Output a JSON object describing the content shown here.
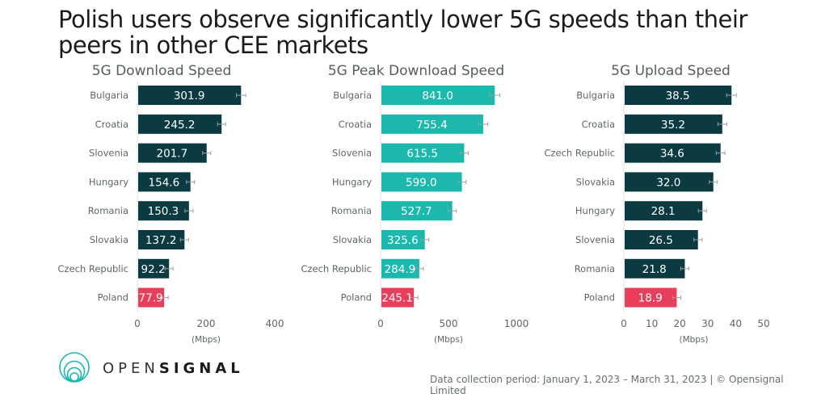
{
  "title": "Polish users observe significantly lower 5G speeds than their peers in other CEE markets",
  "brand": {
    "light": "OPEN",
    "bold": "SIGNAL",
    "logo_icon": "opensignal-rings-icon"
  },
  "footer": "Data collection period: January 1, 2023 – March 31, 2023 | © Opensignal Limited",
  "colors": {
    "download": "#0b3b40",
    "peak": "#1db8ad",
    "upload": "#0b3b40",
    "highlight": "#e83e5c",
    "axis": "#e0e0e0",
    "error_bar": "#9aa0a2"
  },
  "chart_data": [
    {
      "type": "bar",
      "orientation": "horizontal",
      "title": "5G Download Speed",
      "xlabel": "(Mbps)",
      "categories": [
        "Bulgaria",
        "Croatia",
        "Slovenia",
        "Hungary",
        "Romania",
        "Slovakia",
        "Czech Republic",
        "Poland"
      ],
      "values": [
        301.9,
        245.2,
        201.7,
        154.6,
        150.3,
        137.2,
        92.2,
        77.9
      ],
      "value_labels": [
        "301.9",
        "245.2",
        "201.7",
        "154.6",
        "150.3",
        "137.2",
        "92.2",
        "77.9"
      ],
      "highlight": "Poland",
      "xlim": [
        0,
        400
      ],
      "xticks": [
        0,
        200,
        400
      ],
      "error_bars": true,
      "grid": false
    },
    {
      "type": "bar",
      "orientation": "horizontal",
      "title": "5G Peak Download Speed",
      "xlabel": "(Mbps)",
      "categories": [
        "Bulgaria",
        "Croatia",
        "Slovenia",
        "Hungary",
        "Romania",
        "Slovakia",
        "Czech Republic",
        "Poland"
      ],
      "values": [
        841.0,
        755.4,
        615.5,
        599.0,
        527.7,
        325.6,
        284.9,
        245.1
      ],
      "value_labels": [
        "841.0",
        "755.4",
        "615.5",
        "599.0",
        "527.7",
        "325.6",
        "284.9",
        "245.1"
      ],
      "highlight": "Poland",
      "xlim": [
        0,
        1000
      ],
      "xticks": [
        0,
        500,
        1000
      ],
      "error_bars": true,
      "grid": false
    },
    {
      "type": "bar",
      "orientation": "horizontal",
      "title": "5G Upload Speed",
      "xlabel": "(Mbps)",
      "categories": [
        "Bulgaria",
        "Croatia",
        "Czech Republic",
        "Slovakia",
        "Hungary",
        "Slovenia",
        "Romania",
        "Poland"
      ],
      "values": [
        38.5,
        35.2,
        34.6,
        32.0,
        28.1,
        26.5,
        21.8,
        18.9
      ],
      "value_labels": [
        "38.5",
        "35.2",
        "34.6",
        "32.0",
        "28.1",
        "26.5",
        "21.8",
        "18.9"
      ],
      "highlight": "Poland",
      "xlim": [
        0,
        50
      ],
      "xticks": [
        0,
        10,
        20,
        30,
        40,
        50
      ],
      "error_bars": true,
      "grid": false
    }
  ]
}
